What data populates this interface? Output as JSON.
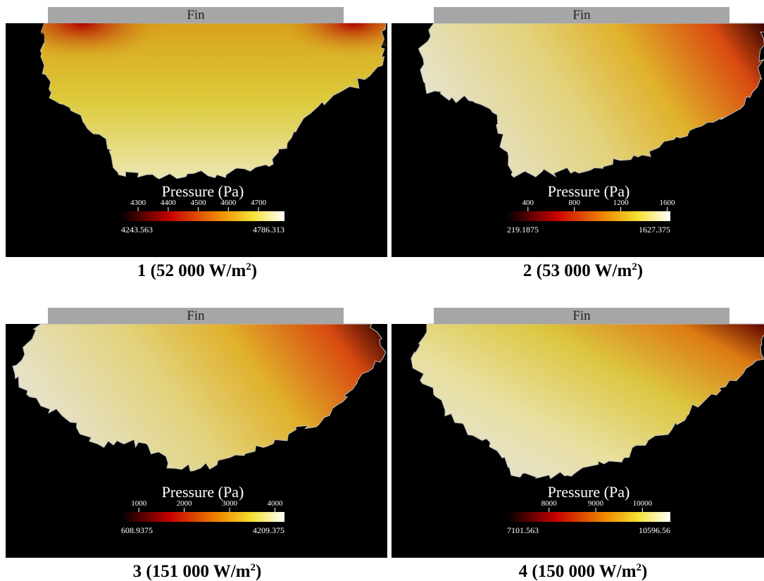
{
  "panels": [
    {
      "fin": "Fin",
      "legend": {
        "title": "Pressure (Pa)",
        "ticks": [
          4300,
          4400,
          4500,
          4600,
          4700
        ],
        "min": 4243.563,
        "max": 4786.313
      },
      "caption": {
        "label": "1 (52 000 W/m",
        "sup": "2",
        "close": ")"
      }
    },
    {
      "fin": "Fin",
      "legend": {
        "title": "Pressure (Pa)",
        "ticks": [
          400,
          800,
          1200,
          1600
        ],
        "min": 219.1875,
        "max": 1627.375
      },
      "caption": {
        "label": "2 (53 000 W/m",
        "sup": "2",
        "close": ")"
      }
    },
    {
      "fin": "Fin",
      "legend": {
        "title": "Pressure (Pa)",
        "ticks": [
          1000,
          2000,
          3000,
          4000
        ],
        "min": 608.9375,
        "max": 4209.375
      },
      "caption": {
        "label": "3 (151 000 W/m",
        "sup": "2",
        "close": ")"
      }
    },
    {
      "fin": "Fin",
      "legend": {
        "title": "Pressure (Pa)",
        "ticks": [
          8000,
          9000,
          10000
        ],
        "min": 7101.563,
        "max": 10596.56
      },
      "caption": {
        "label": "4 (150 000 W/m",
        "sup": "2",
        "close": ")"
      }
    }
  ]
}
